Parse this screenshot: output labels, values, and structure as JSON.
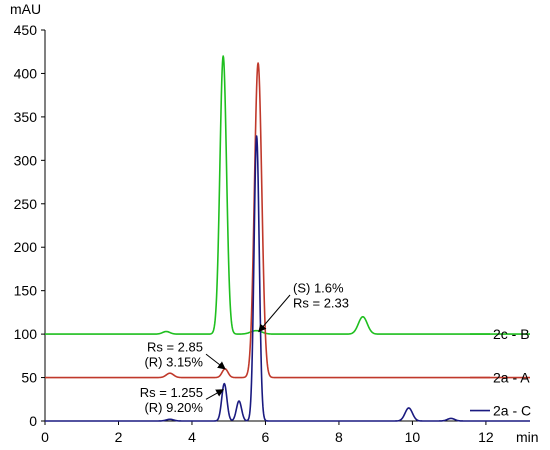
{
  "chart_data": {
    "type": "line",
    "ylabel": "mAU",
    "xlabel": "min",
    "xlim": [
      0,
      13.2
    ],
    "ylim": [
      0,
      450
    ],
    "xticks": [
      "0",
      "2",
      "4",
      "6",
      "8",
      "10",
      "12"
    ],
    "yticks": [
      "0",
      "50",
      "100",
      "150",
      "200",
      "250",
      "300",
      "350",
      "400",
      "450"
    ],
    "xtick_values": [
      0,
      2,
      4,
      6,
      8,
      10,
      12
    ],
    "ytick_values": [
      0,
      50,
      100,
      150,
      200,
      250,
      300,
      350,
      400,
      450
    ],
    "grid": false,
    "series": [
      {
        "name": "2c - B",
        "color": "#1fbf1f",
        "baseline": 100,
        "peaks": [
          [
            3.3,
            3,
            0.1
          ],
          [
            4.85,
            320,
            0.09
          ],
          [
            5.75,
            4,
            0.15
          ],
          [
            8.65,
            20,
            0.12
          ]
        ]
      },
      {
        "name": "2a - A",
        "color": "#c0392b",
        "baseline": 50,
        "peaks": [
          [
            3.4,
            5,
            0.1
          ],
          [
            4.9,
            10,
            0.08
          ],
          [
            5.8,
            362,
            0.1
          ]
        ]
      },
      {
        "name": "2a - C",
        "color": "#1a1a80",
        "baseline": 0,
        "peaks": [
          [
            3.4,
            2,
            0.1
          ],
          [
            4.88,
            43,
            0.07
          ],
          [
            5.28,
            23,
            0.07
          ],
          [
            5.76,
            328,
            0.07
          ],
          [
            9.9,
            15,
            0.1
          ],
          [
            11.05,
            3,
            0.1
          ]
        ]
      }
    ],
    "annotations": [
      {
        "lines": [
          "(S) 1.6%",
          "Rs = 2.33"
        ],
        "point": [
          5.82,
          103
        ],
        "anchor": [
          6.75,
          145
        ]
      },
      {
        "lines": [
          "Rs = 2.85",
          "(R) 3.15%"
        ],
        "point": [
          4.9,
          60
        ],
        "anchor": [
          4.3,
          77
        ]
      },
      {
        "lines": [
          "Rs = 1.255",
          "(R) 9.20%"
        ],
        "point": [
          4.85,
          36
        ],
        "anchor": [
          4.3,
          25
        ]
      }
    ]
  }
}
